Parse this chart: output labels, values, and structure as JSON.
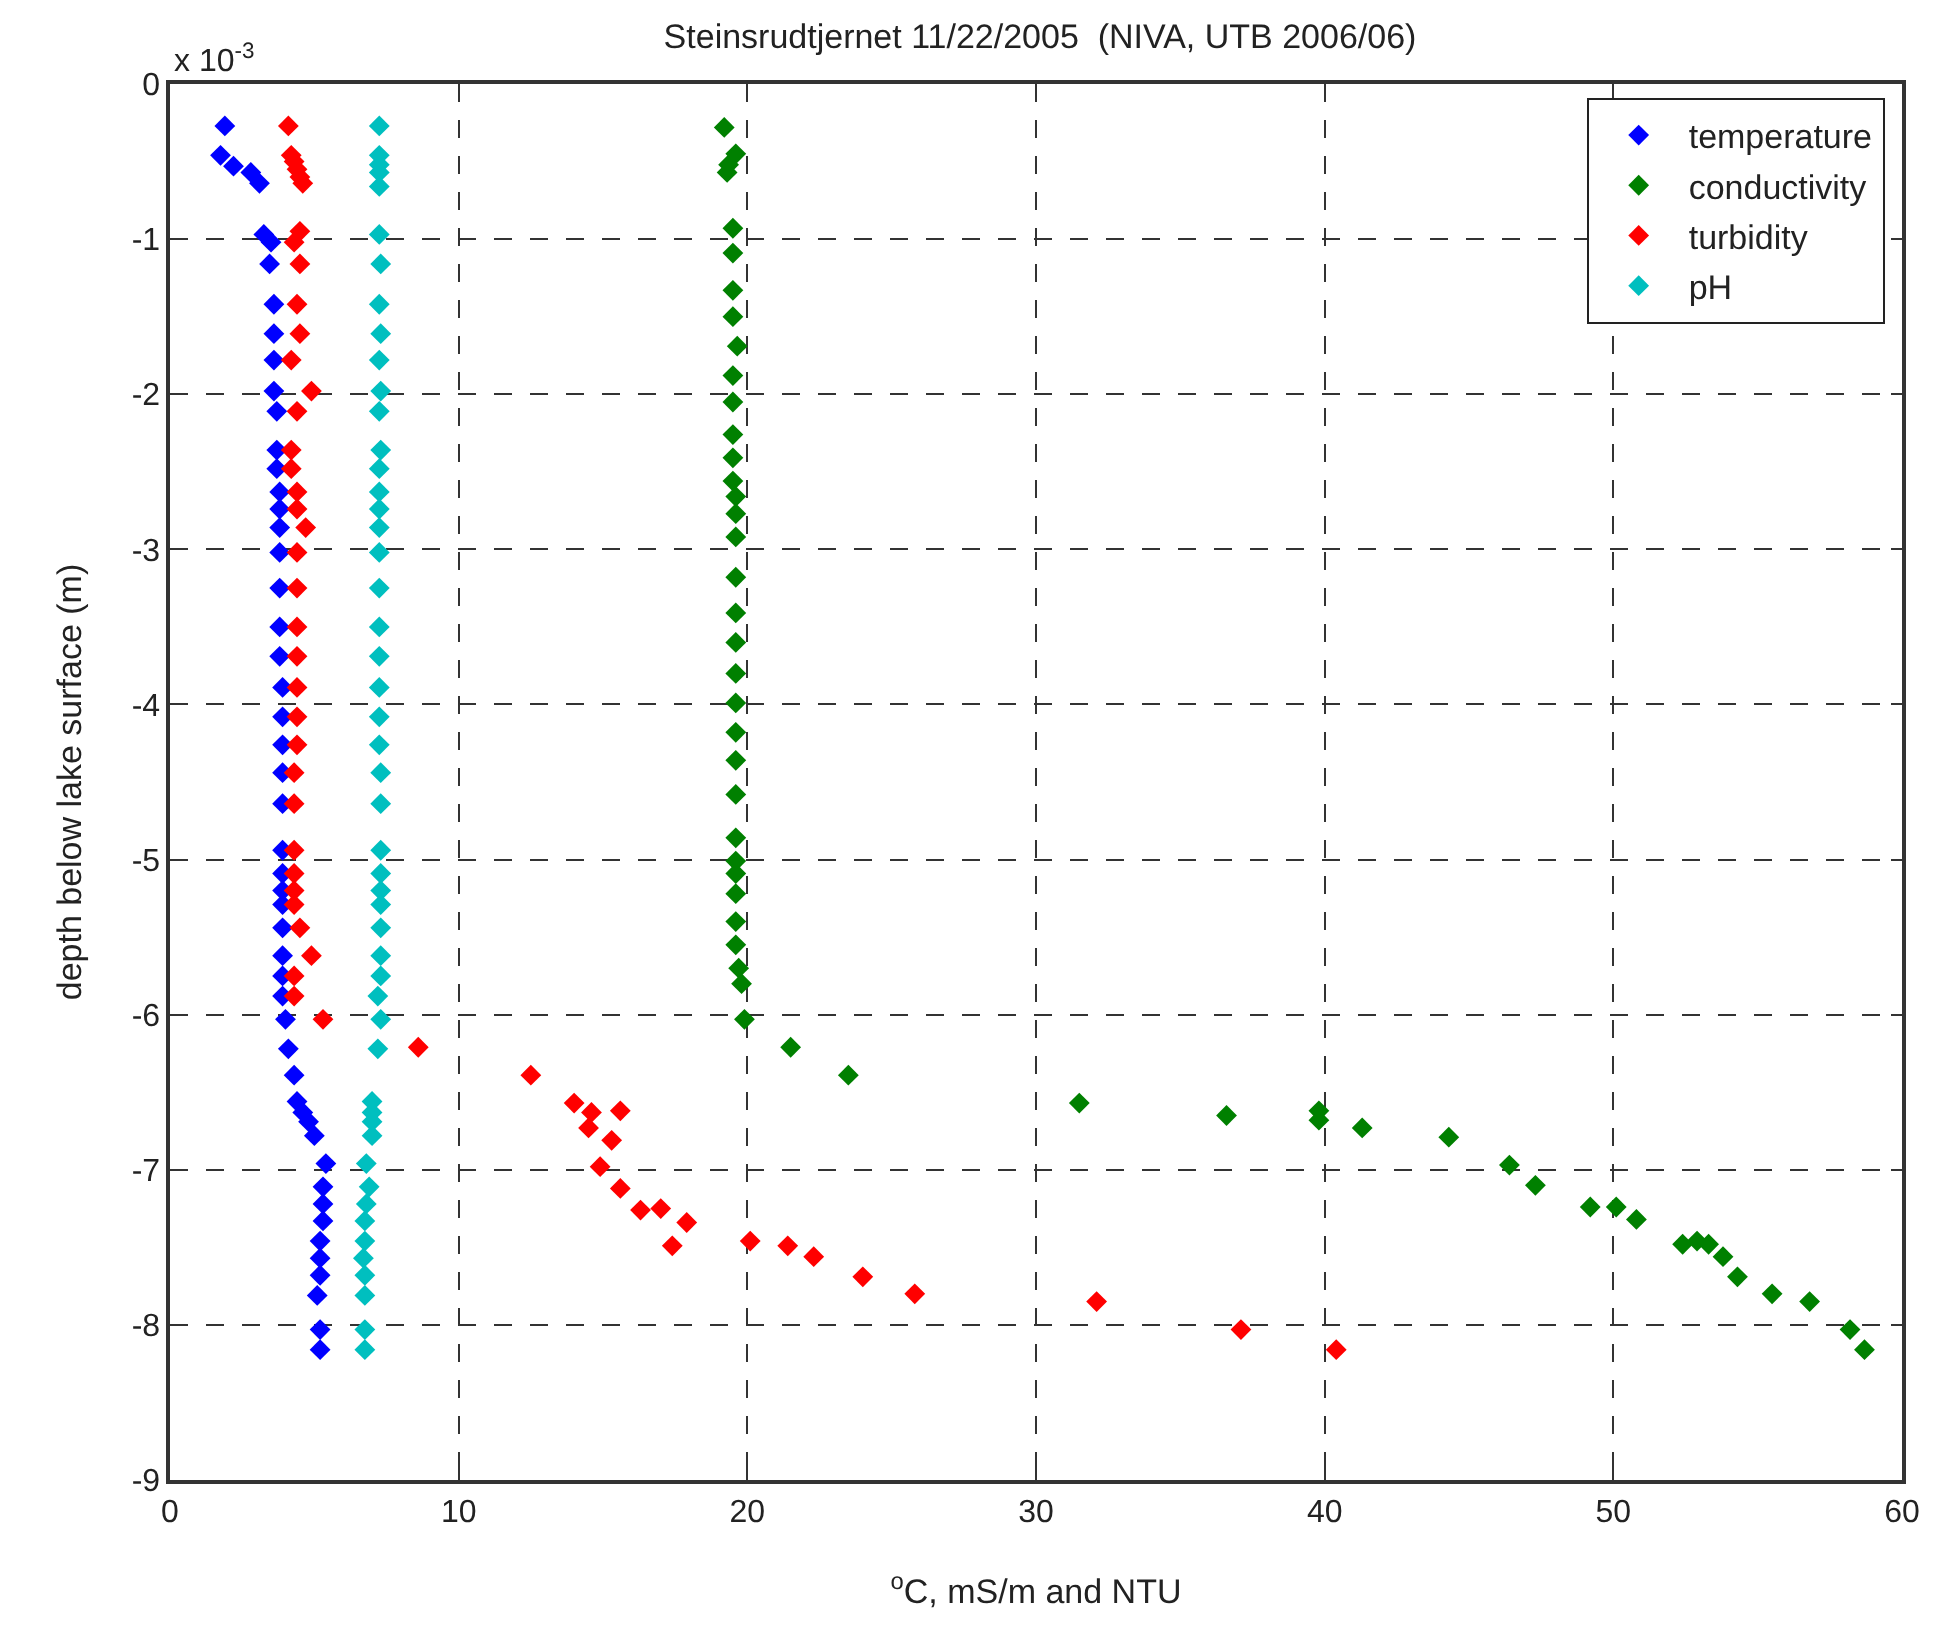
{
  "chart_data": {
    "type": "scatter",
    "title": "Steinsrudtjernet 11/22/2005  (NIVA, UTB 2006/06)",
    "xlabel": "$^{o}$C, mS/m and NTU",
    "ylabel": "depth below lake surface (m)",
    "annotations": [
      "x 10$^{-3}$"
    ],
    "xlim": [
      0,
      60
    ],
    "xticks": [
      0,
      10,
      20,
      30,
      40,
      50,
      60
    ],
    "ylim": [
      -9,
      0
    ],
    "yticks": [
      0,
      -1,
      -2,
      -3,
      -4,
      -5,
      -6,
      -7,
      -8,
      -9
    ],
    "grid": true,
    "legend": "top right",
    "marker": "diamond",
    "series": [
      {
        "name": "temperature",
        "color": "#0000ff",
        "x": [
          1.9,
          1.75,
          2.2,
          2.8,
          3.1,
          3.25,
          3.5,
          3.45,
          3.6,
          3.6,
          3.6,
          3.6,
          3.7,
          3.7,
          3.7,
          3.8,
          3.8,
          3.8,
          3.8,
          3.8,
          3.8,
          3.8,
          3.9,
          3.9,
          3.9,
          3.9,
          3.9,
          3.9,
          3.9,
          3.9,
          3.9,
          3.9,
          3.9,
          3.9,
          3.9,
          4.0,
          4.1,
          4.3,
          4.4,
          4.6,
          4.8,
          5.0,
          5.4,
          5.3,
          5.3,
          5.3,
          5.2,
          5.2,
          5.2,
          5.1,
          5.2,
          5.2
        ],
        "values": [
          -0.27,
          -0.46,
          -0.53,
          -0.57,
          -0.64,
          -0.97,
          -1.02,
          -1.16,
          -1.42,
          -1.61,
          -1.78,
          -1.98,
          -2.11,
          -2.36,
          -2.48,
          -2.63,
          -2.74,
          -2.86,
          -3.02,
          -3.25,
          -3.5,
          -3.69,
          -3.89,
          -4.08,
          -4.26,
          -4.44,
          -4.64,
          -4.94,
          -5.09,
          -5.2,
          -5.29,
          -5.44,
          -5.62,
          -5.75,
          -5.88,
          -6.03,
          -6.22,
          -6.39,
          -6.56,
          -6.63,
          -6.69,
          -6.78,
          -6.96,
          -7.11,
          -7.22,
          -7.33,
          -7.46,
          -7.57,
          -7.68,
          -7.81,
          -8.03,
          -8.16
        ]
      },
      {
        "name": "conductivity",
        "color": "#008000",
        "x": [
          19.2,
          19.6,
          19.35,
          19.3,
          19.5,
          19.5,
          19.5,
          19.5,
          19.65,
          19.5,
          19.5,
          19.5,
          19.5,
          19.5,
          19.6,
          19.6,
          19.6,
          19.6,
          19.6,
          19.6,
          19.6,
          19.6,
          19.6,
          19.6,
          19.6,
          19.6,
          19.6,
          19.6,
          19.6,
          19.6,
          19.6,
          19.7,
          19.8,
          19.9,
          21.5,
          23.5,
          31.5,
          36.6,
          39.8,
          39.8,
          41.3,
          44.3,
          46.4,
          47.3,
          49.2,
          50.1,
          50.8,
          52.4,
          52.9,
          53.3,
          53.8,
          54.3,
          55.5,
          56.8,
          58.2,
          58.7
        ],
        "values": [
          -0.28,
          -0.45,
          -0.52,
          -0.57,
          -0.93,
          -1.09,
          -1.33,
          -1.5,
          -1.69,
          -1.88,
          -2.05,
          -2.26,
          -2.41,
          -2.56,
          -2.66,
          -2.77,
          -2.92,
          -3.18,
          -3.41,
          -3.6,
          -3.8,
          -3.99,
          -4.18,
          -4.36,
          -4.58,
          -4.86,
          -5.01,
          -5.09,
          -5.22,
          -5.4,
          -5.55,
          -5.7,
          -5.8,
          -6.03,
          -6.21,
          -6.39,
          -6.57,
          -6.65,
          -6.62,
          -6.68,
          -6.73,
          -6.79,
          -6.97,
          -7.1,
          -7.24,
          -7.24,
          -7.32,
          -7.48,
          -7.46,
          -7.48,
          -7.56,
          -7.69,
          -7.8,
          -7.85,
          -8.03,
          -8.16
        ]
      },
      {
        "name": "turbidity",
        "color": "#ff0000",
        "x": [
          4.1,
          4.2,
          4.3,
          4.4,
          4.5,
          4.6,
          4.5,
          4.3,
          4.5,
          4.4,
          4.5,
          4.2,
          4.9,
          4.4,
          4.2,
          4.2,
          4.4,
          4.4,
          4.7,
          4.4,
          4.4,
          4.4,
          4.4,
          4.4,
          4.4,
          4.4,
          4.3,
          4.3,
          4.3,
          4.3,
          4.3,
          4.3,
          4.5,
          4.9,
          4.3,
          4.3,
          5.3,
          8.6,
          12.5,
          14.0,
          14.6,
          14.5,
          15.6,
          15.3,
          14.9,
          15.6,
          16.3,
          17.0,
          17.9,
          17.4,
          20.1,
          21.4,
          22.3,
          24.0,
          25.8,
          32.1,
          37.1,
          40.4
        ],
        "values": [
          -0.27,
          -0.46,
          -0.5,
          -0.55,
          -0.6,
          -0.64,
          -0.95,
          -1.02,
          -1.16,
          -1.42,
          -1.61,
          -1.78,
          -1.98,
          -2.11,
          -2.36,
          -2.48,
          -2.63,
          -2.74,
          -2.86,
          -3.02,
          -3.25,
          -3.5,
          -3.69,
          -3.89,
          -4.08,
          -4.26,
          -4.44,
          -4.64,
          -4.94,
          -5.09,
          -5.2,
          -5.29,
          -5.44,
          -5.62,
          -5.75,
          -5.88,
          -6.03,
          -6.21,
          -6.39,
          -6.57,
          -6.63,
          -6.73,
          -6.62,
          -6.81,
          -6.98,
          -7.12,
          -7.26,
          -7.25,
          -7.34,
          -7.49,
          -7.46,
          -7.49,
          -7.56,
          -7.69,
          -7.8,
          -7.85,
          -8.03,
          -8.16
        ]
      },
      {
        "name": "pH",
        "color": "#00bfbf",
        "x": [
          7.25,
          7.25,
          7.25,
          7.25,
          7.25,
          7.25,
          7.3,
          7.25,
          7.3,
          7.25,
          7.3,
          7.25,
          7.3,
          7.25,
          7.25,
          7.25,
          7.25,
          7.25,
          7.25,
          7.25,
          7.25,
          7.25,
          7.25,
          7.25,
          7.3,
          7.3,
          7.3,
          7.3,
          7.3,
          7.3,
          7.3,
          7.3,
          7.3,
          7.2,
          7.3,
          7.2,
          7.0,
          7.0,
          7.0,
          7.0,
          6.8,
          6.9,
          6.8,
          6.75,
          6.75,
          6.7,
          6.75,
          6.75,
          6.75,
          6.75
        ],
        "values": [
          -0.27,
          -0.46,
          -0.52,
          -0.57,
          -0.66,
          -0.97,
          -1.16,
          -1.42,
          -1.61,
          -1.78,
          -1.98,
          -2.11,
          -2.36,
          -2.48,
          -2.63,
          -2.74,
          -2.86,
          -3.02,
          -3.25,
          -3.5,
          -3.69,
          -3.89,
          -4.08,
          -4.26,
          -4.44,
          -4.64,
          -4.94,
          -5.09,
          -5.2,
          -5.29,
          -5.44,
          -5.62,
          -5.75,
          -5.88,
          -6.03,
          -6.22,
          -6.56,
          -6.63,
          -6.69,
          -6.78,
          -6.96,
          -7.11,
          -7.22,
          -7.33,
          -7.46,
          -7.57,
          -7.68,
          -7.81,
          -8.03,
          -8.16
        ]
      }
    ]
  }
}
